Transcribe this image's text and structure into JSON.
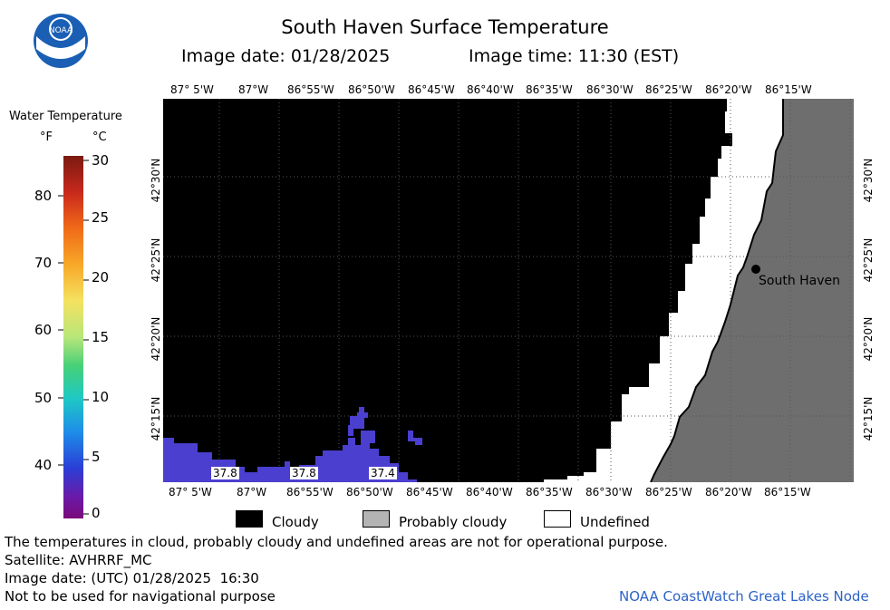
{
  "header": {
    "title": "South Haven Surface Temperature",
    "image_date_label": "Image date: 01/28/2025",
    "image_time_label": "Image time: 11:30 (EST)"
  },
  "logo": {
    "text": "NOAA"
  },
  "longitude_ticks": [
    "87° 5'W",
    "87°W",
    "86°55'W",
    "86°50'W",
    "86°45'W",
    "86°40'W",
    "86°35'W",
    "86°30'W",
    "86°25'W",
    "86°20'W",
    "86°15'W"
  ],
  "latitude_ticks": [
    "42°30'N",
    "42°25'N",
    "42°20'N",
    "42°15'N"
  ],
  "legend": {
    "title": "Water Temperature",
    "unit_f": "°F",
    "unit_c": "°C",
    "fahrenheit_labels": [
      "80",
      "70",
      "60",
      "50",
      "40"
    ],
    "celsius_labels": [
      "30",
      "25",
      "20",
      "15",
      "10",
      "5",
      "0"
    ],
    "range_c": [
      0,
      30
    ]
  },
  "map": {
    "place_label": "South Haven",
    "temperature_labels": [
      "37.8",
      "37.8",
      "37.4"
    ],
    "colors": {
      "cloudy": "#000000",
      "land": "#6e6e6e",
      "undefined": "#ffffff",
      "water": "#4b3fcf"
    }
  },
  "key": {
    "items": [
      {
        "label": "Cloudy",
        "color": "#000000"
      },
      {
        "label": "Probably cloudy",
        "color": "#b4b4b4"
      },
      {
        "label": "Undefined",
        "color": "#ffffff"
      }
    ]
  },
  "footer": {
    "disclaimer": "The temperatures in cloud, probably cloudy and undefined areas are not for operational purpose.",
    "satellite": "Satellite: AVHRRF_MC",
    "utc_date": "Image date: (UTC) 01/28/2025  16:30",
    "navigation_note": "Not to be used for navigational purpose",
    "credit": "NOAA CoastWatch Great Lakes Node"
  }
}
